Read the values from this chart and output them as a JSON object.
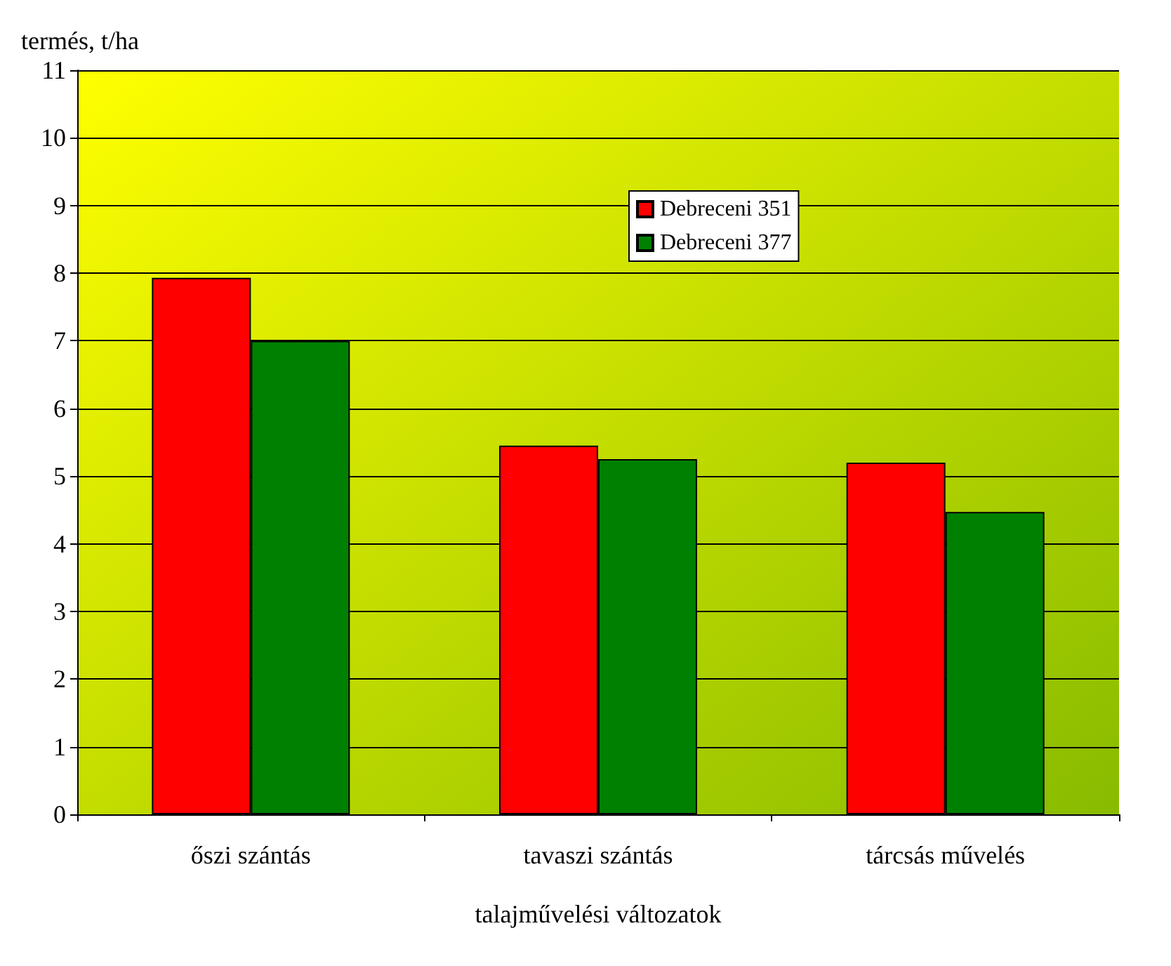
{
  "chart_data": {
    "type": "bar",
    "xlabel": "talajművelési változatok",
    "ylabel": "termés, t/ha",
    "categories": [
      "őszi szántás",
      "tavaszi szántás",
      "tárcsás művelés"
    ],
    "series": [
      {
        "name": "Debreceni 351",
        "color": "#ff0000",
        "values": [
          7.93,
          5.45,
          5.2
        ]
      },
      {
        "name": "Debreceni 377",
        "color": "#008000",
        "values": [
          7.0,
          5.25,
          4.47
        ]
      }
    ],
    "ylim": [
      0,
      11
    ],
    "yticks": [
      0,
      1,
      2,
      3,
      4,
      5,
      6,
      7,
      8,
      9,
      10,
      11
    ],
    "grid": "y",
    "legend": "top"
  }
}
